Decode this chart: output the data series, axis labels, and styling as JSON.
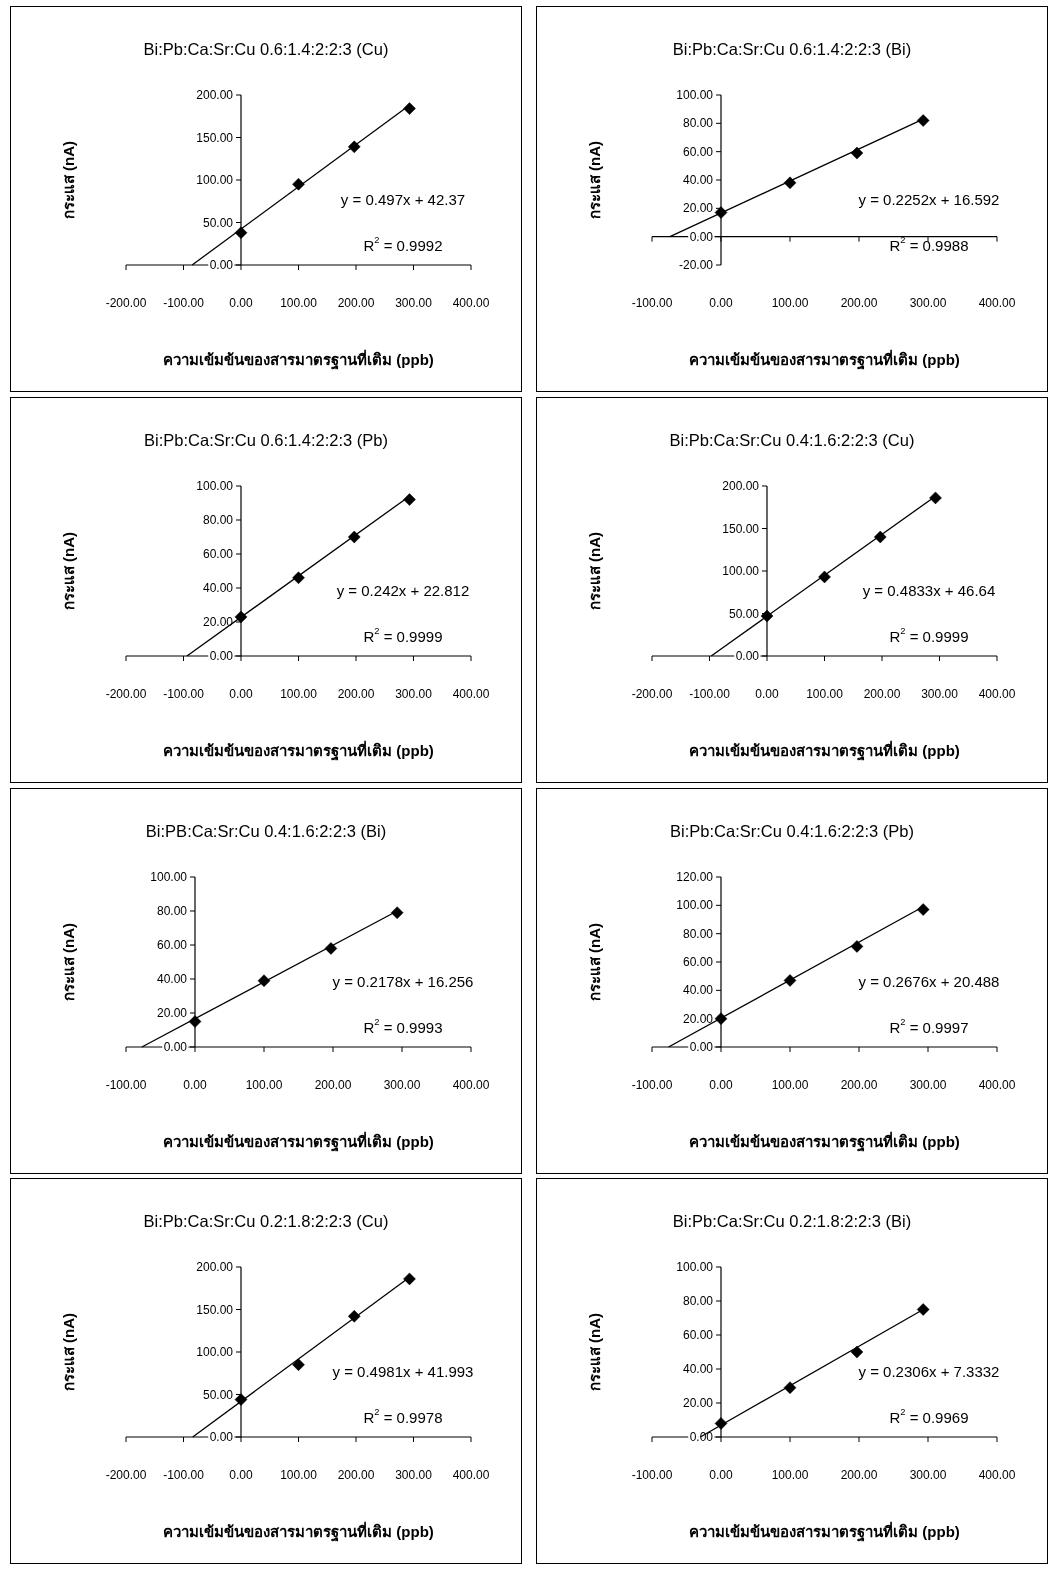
{
  "chart_data": [
    {
      "type": "scatter",
      "title": "Bi:Pb:Ca:Sr:Cu 0.6:1.4:2:2:3 (Cu)",
      "xlabel": "ความเข้มข้นของสารมาตรฐานที่เติม (ppb)",
      "ylabel": "กระแส (nA)",
      "marker": "diamond",
      "x": [
        0,
        100,
        197,
        293
      ],
      "series": [
        {
          "color": "#000000",
          "values": [
            38,
            95,
            139,
            184
          ]
        },
        {
          "type": "line",
          "marker": "none",
          "color": "#000000",
          "x": [
            -85,
            293
          ],
          "values": [
            0,
            188
          ]
        }
      ],
      "xlim": [
        -200,
        400
      ],
      "xticks": [
        {
          "value": -200,
          "label": "-200.00"
        },
        {
          "value": -100,
          "label": "-100.00"
        },
        {
          "value": 0,
          "label": "0.00"
        },
        {
          "value": 100,
          "label": "100.00"
        },
        {
          "value": 200,
          "label": "200.00"
        },
        {
          "value": 300,
          "label": "300.00"
        },
        {
          "value": 400,
          "label": "400.00"
        }
      ],
      "ylim": [
        0,
        200
      ],
      "yticks": [
        {
          "value": 0,
          "label": "0.00"
        },
        {
          "value": 50,
          "label": "50.00"
        },
        {
          "value": 100,
          "label": "100.00"
        },
        {
          "value": 150,
          "label": "150.00"
        },
        {
          "value": 200,
          "label": "200.00"
        }
      ],
      "annotations": [
        "y = 0.497x + 42.37",
        "R$^{2}$ = 0.9992"
      ]
    },
    {
      "type": "scatter",
      "title": "Bi:Pb:Ca:Sr:Cu 0.6:1.4:2:2:3 (Bi)",
      "xlabel": "ความเข้มข้นของสารมาตรฐานที่เติม (ppb)",
      "ylabel": "กระแส (nA)",
      "marker": "diamond",
      "x": [
        0,
        100,
        197,
        293
      ],
      "series": [
        {
          "color": "#000000",
          "values": [
            17,
            38,
            59,
            82
          ]
        },
        {
          "type": "line",
          "marker": "none",
          "color": "#000000",
          "x": [
            -74,
            293
          ],
          "values": [
            0,
            83
          ]
        }
      ],
      "xlim": [
        -100,
        400
      ],
      "xticks": [
        {
          "value": -100,
          "label": "-100.00"
        },
        {
          "value": 0,
          "label": "0.00"
        },
        {
          "value": 100,
          "label": "100.00"
        },
        {
          "value": 200,
          "label": "200.00"
        },
        {
          "value": 300,
          "label": "300.00"
        },
        {
          "value": 400,
          "label": "400.00"
        }
      ],
      "ylim": [
        -20,
        100
      ],
      "yticks": [
        {
          "value": -20,
          "label": "-20.00"
        },
        {
          "value": 0,
          "label": "0.00"
        },
        {
          "value": 20,
          "label": "20.00"
        },
        {
          "value": 40,
          "label": "40.00"
        },
        {
          "value": 60,
          "label": "60.00"
        },
        {
          "value": 80,
          "label": "80.00"
        },
        {
          "value": 100,
          "label": "100.00"
        }
      ],
      "annotations": [
        "y = 0.2252x + 16.592",
        "R$^{2}$ = 0.9988"
      ]
    },
    {
      "type": "scatter",
      "title": "Bi:Pb:Ca:Sr:Cu 0.6:1.4:2:2:3 (Pb)",
      "xlabel": "ความเข้มข้นของสารมาตรฐานที่เติม (ppb)",
      "ylabel": "กระแส (nA)",
      "marker": "diamond",
      "x": [
        0,
        100,
        197,
        293
      ],
      "series": [
        {
          "color": "#000000",
          "values": [
            23,
            46,
            70,
            92
          ]
        },
        {
          "type": "line",
          "marker": "none",
          "color": "#000000",
          "x": [
            -94,
            293
          ],
          "values": [
            0,
            94
          ]
        }
      ],
      "xlim": [
        -200,
        400
      ],
      "xticks": [
        {
          "value": -200,
          "label": "-200.00"
        },
        {
          "value": -100,
          "label": "-100.00"
        },
        {
          "value": 0,
          "label": "0.00"
        },
        {
          "value": 100,
          "label": "100.00"
        },
        {
          "value": 200,
          "label": "200.00"
        },
        {
          "value": 300,
          "label": "300.00"
        },
        {
          "value": 400,
          "label": "400.00"
        }
      ],
      "ylim": [
        0,
        100
      ],
      "yticks": [
        {
          "value": 0,
          "label": "0.00"
        },
        {
          "value": 20,
          "label": "20.00"
        },
        {
          "value": 40,
          "label": "40.00"
        },
        {
          "value": 60,
          "label": "60.00"
        },
        {
          "value": 80,
          "label": "80.00"
        },
        {
          "value": 100,
          "label": "100.00"
        }
      ],
      "annotations": [
        "y = 0.242x + 22.812",
        "R$^{2}$ = 0.9999"
      ]
    },
    {
      "type": "scatter",
      "title": "Bi:Pb:Ca:Sr:Cu 0.4:1.6:2:2:3 (Cu)",
      "xlabel": "ความเข้มข้นของสารมาตรฐานที่เติม (ppb)",
      "ylabel": "กระแส (nA)",
      "marker": "diamond",
      "x": [
        0,
        100,
        197,
        293
      ],
      "series": [
        {
          "color": "#000000",
          "values": [
            47,
            93,
            140,
            186
          ]
        },
        {
          "type": "line",
          "marker": "none",
          "color": "#000000",
          "x": [
            -97,
            293
          ],
          "values": [
            0,
            188
          ]
        }
      ],
      "xlim": [
        -200,
        400
      ],
      "xticks": [
        {
          "value": -200,
          "label": "-200.00"
        },
        {
          "value": -100,
          "label": "-100.00"
        },
        {
          "value": 0,
          "label": "0.00"
        },
        {
          "value": 100,
          "label": "100.00"
        },
        {
          "value": 200,
          "label": "200.00"
        },
        {
          "value": 300,
          "label": "300.00"
        },
        {
          "value": 400,
          "label": "400.00"
        }
      ],
      "ylim": [
        0,
        200
      ],
      "yticks": [
        {
          "value": 0,
          "label": "0.00"
        },
        {
          "value": 50,
          "label": "50.00"
        },
        {
          "value": 100,
          "label": "100.00"
        },
        {
          "value": 150,
          "label": "150.00"
        },
        {
          "value": 200,
          "label": "200.00"
        }
      ],
      "annotations": [
        "y = 0.4833x + 46.64",
        "R$^{2}$ = 0.9999"
      ]
    },
    {
      "type": "scatter",
      "title": "Bi:PB:Ca:Sr:Cu 0.4:1.6:2:2:3 (Bi)",
      "xlabel": "ความเข้มข้นของสารมาตรฐานที่เติม (ppb)",
      "ylabel": "กระแส (nA)",
      "marker": "diamond",
      "x": [
        0,
        100,
        197,
        293
      ],
      "series": [
        {
          "color": "#000000",
          "values": [
            15,
            39,
            58,
            79
          ]
        },
        {
          "type": "line",
          "marker": "none",
          "color": "#000000",
          "x": [
            -77,
            293
          ],
          "values": [
            0,
            80
          ]
        }
      ],
      "xlim": [
        -100,
        400
      ],
      "xticks": [
        {
          "value": -100,
          "label": "-100.00"
        },
        {
          "value": 0,
          "label": "0.00"
        },
        {
          "value": 100,
          "label": "100.00"
        },
        {
          "value": 200,
          "label": "200.00"
        },
        {
          "value": 300,
          "label": "300.00"
        },
        {
          "value": 400,
          "label": "400.00"
        }
      ],
      "ylim": [
        0,
        100
      ],
      "yticks": [
        {
          "value": 0,
          "label": "0.00"
        },
        {
          "value": 20,
          "label": "20.00"
        },
        {
          "value": 40,
          "label": "40.00"
        },
        {
          "value": 60,
          "label": "60.00"
        },
        {
          "value": 80,
          "label": "80.00"
        },
        {
          "value": 100,
          "label": "100.00"
        }
      ],
      "annotations": [
        "y = 0.2178x + 16.256",
        "R$^{2}$ = 0.9993"
      ]
    },
    {
      "type": "scatter",
      "title": "Bi:Pb:Ca:Sr:Cu 0.4:1.6:2:2:3 (Pb)",
      "xlabel": "ความเข้มข้นของสารมาตรฐานที่เติม (ppb)",
      "ylabel": "กระแส (nA)",
      "marker": "diamond",
      "x": [
        0,
        100,
        197,
        293
      ],
      "series": [
        {
          "color": "#000000",
          "values": [
            20,
            47,
            71,
            97
          ]
        },
        {
          "type": "line",
          "marker": "none",
          "color": "#000000",
          "x": [
            -76,
            293
          ],
          "values": [
            0,
            99
          ]
        }
      ],
      "xlim": [
        -100,
        400
      ],
      "xticks": [
        {
          "value": -100,
          "label": "-100.00"
        },
        {
          "value": 0,
          "label": "0.00"
        },
        {
          "value": 100,
          "label": "100.00"
        },
        {
          "value": 200,
          "label": "200.00"
        },
        {
          "value": 300,
          "label": "300.00"
        },
        {
          "value": 400,
          "label": "400.00"
        }
      ],
      "ylim": [
        0,
        120
      ],
      "yticks": [
        {
          "value": 0,
          "label": "0.00"
        },
        {
          "value": 20,
          "label": "20.00"
        },
        {
          "value": 40,
          "label": "40.00"
        },
        {
          "value": 60,
          "label": "60.00"
        },
        {
          "value": 80,
          "label": "80.00"
        },
        {
          "value": 100,
          "label": "100.00"
        },
        {
          "value": 120,
          "label": "120.00"
        }
      ],
      "annotations": [
        "y = 0.2676x + 20.488",
        "R$^{2}$ = 0.9997"
      ]
    },
    {
      "type": "scatter",
      "title": "Bi:Pb:Ca:Sr:Cu 0.2:1.8:2:2:3 (Cu)",
      "xlabel": "ความเข้มข้นของสารมาตรฐานที่เติม (ppb)",
      "ylabel": "กระแส (nA)",
      "marker": "diamond",
      "x": [
        0,
        100,
        197,
        293
      ],
      "series": [
        {
          "color": "#000000",
          "values": [
            44,
            85,
            142,
            186
          ]
        },
        {
          "type": "line",
          "marker": "none",
          "color": "#000000",
          "x": [
            -84,
            293
          ],
          "values": [
            0,
            188
          ]
        }
      ],
      "xlim": [
        -200,
        400
      ],
      "xticks": [
        {
          "value": -200,
          "label": "-200.00"
        },
        {
          "value": -100,
          "label": "-100.00"
        },
        {
          "value": 0,
          "label": "0.00"
        },
        {
          "value": 100,
          "label": "100.00"
        },
        {
          "value": 200,
          "label": "200.00"
        },
        {
          "value": 300,
          "label": "300.00"
        },
        {
          "value": 400,
          "label": "400.00"
        }
      ],
      "ylim": [
        0,
        200
      ],
      "yticks": [
        {
          "value": 0,
          "label": "0.00"
        },
        {
          "value": 50,
          "label": "50.00"
        },
        {
          "value": 100,
          "label": "100.00"
        },
        {
          "value": 150,
          "label": "150.00"
        },
        {
          "value": 200,
          "label": "200.00"
        }
      ],
      "annotations": [
        "y = 0.4981x + 41.993",
        "R$^{2}$ = 0.9978"
      ]
    },
    {
      "type": "scatter",
      "title": "Bi:Pb:Ca:Sr:Cu 0.2:1.8:2:2:3 (Bi)",
      "xlabel": "ความเข้มข้นของสารมาตรฐานที่เติม (ppb)",
      "ylabel": "กระแส (nA)",
      "marker": "diamond",
      "x": [
        0,
        100,
        197,
        293
      ],
      "series": [
        {
          "color": "#000000",
          "values": [
            8,
            29,
            50,
            75
          ]
        },
        {
          "type": "line",
          "marker": "none",
          "color": "#000000",
          "x": [
            -30,
            293
          ],
          "values": [
            0,
            75
          ]
        }
      ],
      "xlim": [
        -100,
        400
      ],
      "xticks": [
        {
          "value": -100,
          "label": "-100.00"
        },
        {
          "value": 0,
          "label": "0.00"
        },
        {
          "value": 100,
          "label": "100.00"
        },
        {
          "value": 200,
          "label": "200.00"
        },
        {
          "value": 300,
          "label": "300.00"
        },
        {
          "value": 400,
          "label": "400.00"
        }
      ],
      "ylim": [
        0,
        100
      ],
      "yticks": [
        {
          "value": 0,
          "label": "0.00"
        },
        {
          "value": 20,
          "label": "20.00"
        },
        {
          "value": 40,
          "label": "40.00"
        },
        {
          "value": 60,
          "label": "60.00"
        },
        {
          "value": 80,
          "label": "80.00"
        },
        {
          "value": 100,
          "label": "100.00"
        }
      ],
      "annotations": [
        "y = 0.2306x + 7.3332",
        "R$^{2}$ = 0.9969"
      ]
    }
  ]
}
